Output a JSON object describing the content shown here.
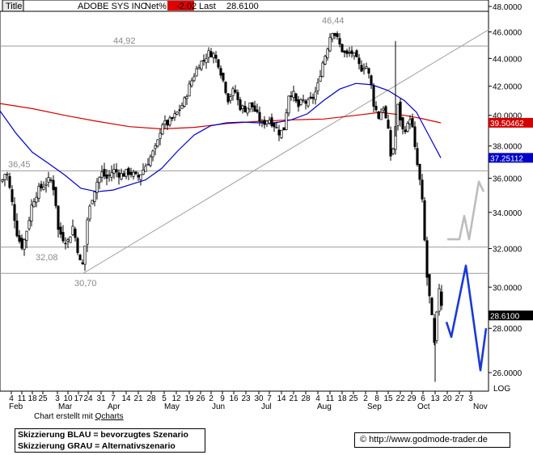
{
  "header": {
    "title_label": "Title",
    "symbol": "ADOBE SYS INC",
    "netpct_label": "Net%",
    "netpct_value": "-2.02",
    "last_label": "Last",
    "last_value": "28.6100"
  },
  "chart_data": {
    "type": "candlestick",
    "yticks": [
      "48.0000",
      "46.0000",
      "44.0000",
      "42.0000",
      "40.0000",
      "38.0000",
      "36.0000",
      "34.0000",
      "32.0000",
      "30.0000",
      "28.0000",
      "26.0000"
    ],
    "scale_label": "LOG",
    "xticks_days": [
      "4",
      "11",
      "18",
      "25",
      "3",
      "10",
      "17",
      "24",
      "31",
      "7",
      "14",
      "21",
      "28",
      "5",
      "12",
      "19",
      "26",
      "2",
      "9",
      "16",
      "23",
      "30",
      "7",
      "14",
      "21",
      "28",
      "4",
      "11",
      "18",
      "25",
      "2",
      "8",
      "15",
      "22",
      "29",
      "6",
      "13",
      "20",
      "27",
      "3"
    ],
    "xticks_months": [
      "Feb",
      "Mar",
      "Apr",
      "May",
      "Jun",
      "Jul",
      "Aug",
      "Sep",
      "Oct",
      "Nov"
    ],
    "price_labels": [
      "36,45",
      "32,08",
      "30,70",
      "44,92",
      "46,44"
    ],
    "axis_markers": [
      {
        "label": "39.50462",
        "color": "#d40000"
      },
      {
        "label": "37.25112",
        "color": "#0000c8"
      },
      {
        "label": "28.6100",
        "color": "#000000"
      }
    ],
    "horizontal_levels": [
      44.92,
      36.45,
      32.08,
      30.7
    ],
    "colors": {
      "ma_red": "#d40000",
      "ma_blue": "#0000c8",
      "scenario_blue": "#1a38d8",
      "scenario_gray": "#bdbdbd",
      "grid": "#9a9a9a"
    },
    "ma200": [
      [
        0,
        40.8
      ],
      [
        40,
        40.45
      ],
      [
        80,
        40.0
      ],
      [
        120,
        39.6
      ],
      [
        160,
        39.25
      ],
      [
        200,
        39.1
      ],
      [
        240,
        39.2
      ],
      [
        280,
        39.45
      ],
      [
        320,
        39.6
      ],
      [
        360,
        39.7
      ],
      [
        400,
        39.75
      ],
      [
        440,
        40.0
      ],
      [
        470,
        40.2
      ],
      [
        500,
        40.0
      ],
      [
        520,
        39.8
      ],
      [
        545,
        39.5
      ]
    ],
    "ma50": [
      [
        0,
        40.3
      ],
      [
        20,
        38.8
      ],
      [
        40,
        37.6
      ],
      [
        60,
        36.9
      ],
      [
        80,
        36.2
      ],
      [
        100,
        35.4
      ],
      [
        120,
        35.2
      ],
      [
        140,
        35.3
      ],
      [
        160,
        35.6
      ],
      [
        180,
        35.9
      ],
      [
        200,
        36.6
      ],
      [
        220,
        37.7
      ],
      [
        240,
        38.7
      ],
      [
        260,
        39.3
      ],
      [
        280,
        39.5
      ],
      [
        300,
        39.55
      ],
      [
        320,
        39.5
      ],
      [
        340,
        39.5
      ],
      [
        360,
        39.7
      ],
      [
        380,
        40.1
      ],
      [
        400,
        41.0
      ],
      [
        420,
        41.8
      ],
      [
        440,
        42.2
      ],
      [
        460,
        42.1
      ],
      [
        480,
        41.7
      ],
      [
        500,
        41.0
      ],
      [
        515,
        40.2
      ],
      [
        530,
        38.7
      ],
      [
        545,
        37.25
      ]
    ],
    "trendline": [
      [
        103,
        30.7
      ],
      [
        605,
        46.2
      ]
    ],
    "price_path": [
      [
        2,
        35.8
      ],
      [
        8,
        36.5
      ],
      [
        14,
        34.8
      ],
      [
        22,
        32.6
      ],
      [
        28,
        32.1
      ],
      [
        34,
        33.2
      ],
      [
        40,
        34.6
      ],
      [
        46,
        35.2
      ],
      [
        52,
        35.5
      ],
      [
        58,
        35.8
      ],
      [
        64,
        35.9
      ],
      [
        68,
        35.0
      ],
      [
        72,
        33.0
      ],
      [
        78,
        32.6
      ],
      [
        84,
        32.4
      ],
      [
        90,
        33.2
      ],
      [
        96,
        32.0
      ],
      [
        100,
        31.0
      ],
      [
        103,
        31.2
      ],
      [
        108,
        33.6
      ],
      [
        114,
        34.9
      ],
      [
        120,
        35.8
      ],
      [
        126,
        36.3
      ],
      [
        132,
        36.0
      ],
      [
        140,
        36.5
      ],
      [
        150,
        36.2
      ],
      [
        160,
        36.4
      ],
      [
        170,
        36.0
      ],
      [
        178,
        36.6
      ],
      [
        186,
        37.3
      ],
      [
        194,
        38.0
      ],
      [
        200,
        39.5
      ],
      [
        206,
        39.4
      ],
      [
        214,
        39.8
      ],
      [
        222,
        40.4
      ],
      [
        228,
        41.0
      ],
      [
        234,
        42.0
      ],
      [
        240,
        42.8
      ],
      [
        246,
        43.6
      ],
      [
        252,
        43.9
      ],
      [
        258,
        44.4
      ],
      [
        264,
        44.3
      ],
      [
        270,
        43.6
      ],
      [
        276,
        42.4
      ],
      [
        282,
        41.1
      ],
      [
        290,
        41.8
      ],
      [
        296,
        40.6
      ],
      [
        304,
        40.4
      ],
      [
        310,
        40.8
      ],
      [
        318,
        40.0
      ],
      [
        324,
        39.4
      ],
      [
        332,
        39.8
      ],
      [
        340,
        39.3
      ],
      [
        346,
        38.8
      ],
      [
        352,
        39.2
      ],
      [
        356,
        41.4
      ],
      [
        362,
        41.6
      ],
      [
        368,
        40.5
      ],
      [
        374,
        41.0
      ],
      [
        380,
        40.8
      ],
      [
        386,
        41.1
      ],
      [
        392,
        41.8
      ],
      [
        398,
        43.5
      ],
      [
        404,
        44.6
      ],
      [
        410,
        46.2
      ],
      [
        416,
        45.6
      ],
      [
        422,
        44.7
      ],
      [
        428,
        44.2
      ],
      [
        434,
        44.5
      ],
      [
        440,
        44.0
      ],
      [
        446,
        43.2
      ],
      [
        452,
        43.6
      ],
      [
        458,
        42.4
      ],
      [
        462,
        40.8
      ],
      [
        468,
        39.9
      ],
      [
        474,
        40.6
      ],
      [
        480,
        38.9
      ],
      [
        484,
        36.9
      ],
      [
        488,
        38.8
      ],
      [
        492,
        40.6
      ],
      [
        498,
        39.0
      ],
      [
        504,
        39.3
      ],
      [
        508,
        40.1
      ],
      [
        512,
        38.1
      ],
      [
        516,
        36.8
      ],
      [
        520,
        35.5
      ],
      [
        524,
        33.6
      ],
      [
        526,
        31.2
      ],
      [
        530,
        29.8
      ],
      [
        534,
        28.4
      ],
      [
        538,
        26.8
      ],
      [
        542,
        30.3
      ],
      [
        546,
        29.2
      ],
      [
        548,
        28.61
      ]
    ],
    "scenario_blue": [
      [
        552,
        28.3
      ],
      [
        558,
        27.6
      ],
      [
        576,
        31.1
      ],
      [
        594,
        26.1
      ],
      [
        601,
        28.0
      ]
    ],
    "scenario_gray": [
      [
        553,
        32.5
      ],
      [
        568,
        32.5
      ],
      [
        574,
        33.8
      ],
      [
        580,
        32.5
      ],
      [
        592,
        35.8
      ],
      [
        598,
        35.2
      ]
    ]
  },
  "credit": {
    "prefix": "Chart erstellt mit ",
    "link": "Qcharts"
  },
  "legend": {
    "line1": "Skizzierung BLAU = bevorzugtes Szenario",
    "line2": "Skizzierung GRAU = Alternativszenario"
  },
  "url": {
    "text": "http://www.godmode-trader.de"
  }
}
